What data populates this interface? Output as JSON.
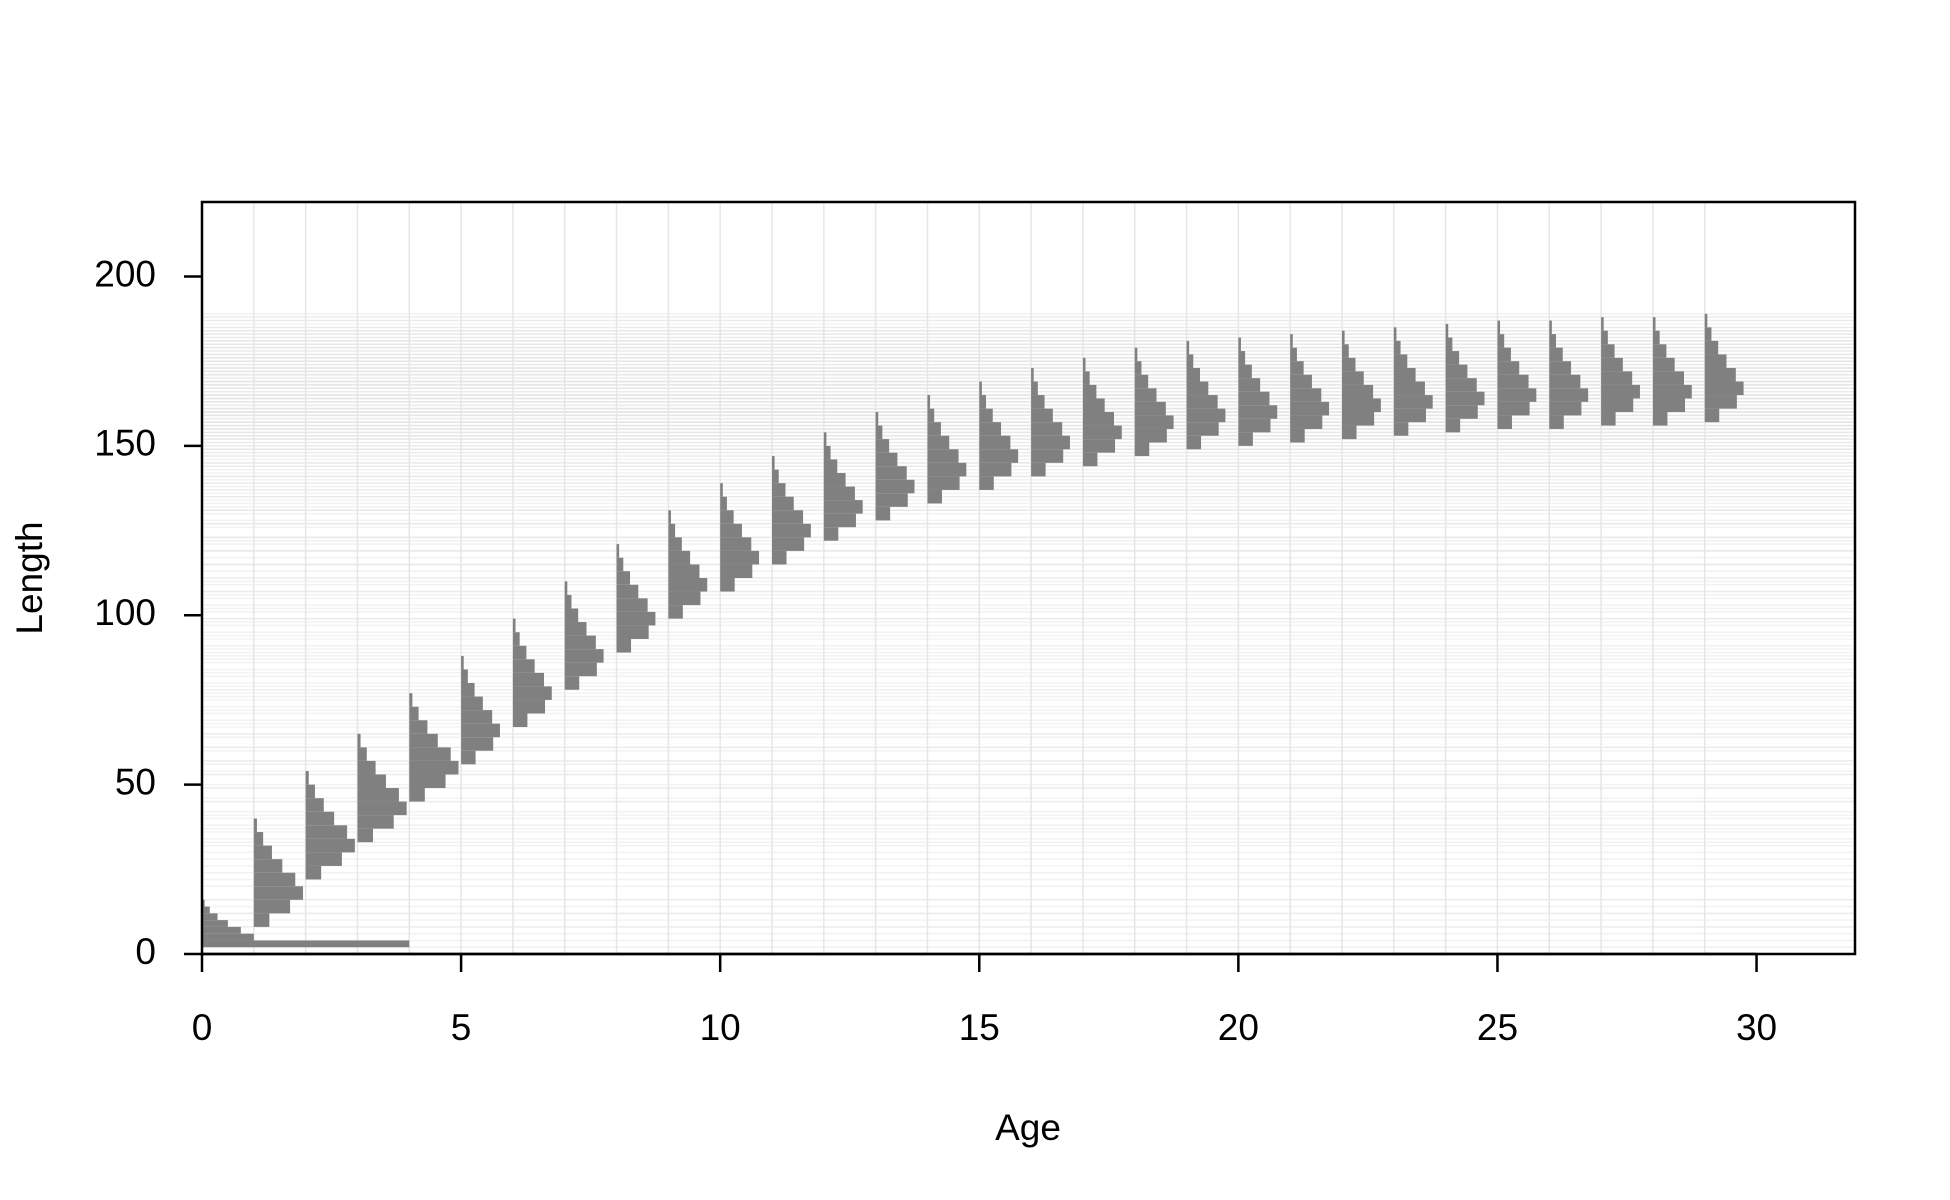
{
  "chart_data": {
    "type": "age-length",
    "xlabel": "Age",
    "ylabel": "Length",
    "color": "#808080",
    "grid": true,
    "xlim": [
      0,
      31.9
    ],
    "ylim": [
      0,
      222
    ],
    "xticks": [
      0,
      5,
      10,
      15,
      20,
      25,
      30
    ],
    "yticks": [
      0,
      50,
      100,
      150,
      200
    ],
    "groups": [
      {
        "age": 0,
        "bins": [
          2,
          4,
          6,
          8,
          10,
          12,
          14,
          16
        ],
        "widths": [
          4,
          1.0,
          0.75,
          0.5,
          0.3,
          0.15,
          0.05
        ]
      },
      {
        "age": 1,
        "bins": [
          8,
          12,
          16,
          20,
          24,
          28,
          32,
          36,
          40
        ],
        "widths": [
          0.3,
          0.7,
          0.95,
          0.8,
          0.55,
          0.35,
          0.18,
          0.06
        ]
      },
      {
        "age": 2,
        "bins": [
          22,
          26,
          30,
          34,
          38,
          42,
          46,
          50,
          54
        ],
        "widths": [
          0.3,
          0.7,
          0.95,
          0.8,
          0.55,
          0.35,
          0.18,
          0.06
        ]
      },
      {
        "age": 3,
        "bins": [
          33,
          37,
          41,
          45,
          49,
          53,
          57,
          61,
          65
        ],
        "widths": [
          0.3,
          0.7,
          0.95,
          0.8,
          0.55,
          0.35,
          0.18,
          0.06
        ]
      },
      {
        "age": 4,
        "bins": [
          45,
          49,
          53,
          57,
          61,
          65,
          69,
          73,
          77
        ],
        "widths": [
          0.3,
          0.7,
          0.95,
          0.8,
          0.55,
          0.35,
          0.18,
          0.06
        ]
      },
      {
        "age": 5,
        "bins": [
          56,
          60,
          64,
          68,
          72,
          76,
          80,
          84,
          88
        ],
        "widths": [
          0.28,
          0.62,
          0.75,
          0.6,
          0.42,
          0.26,
          0.13,
          0.05
        ]
      },
      {
        "age": 6,
        "bins": [
          67,
          71,
          75,
          79,
          83,
          87,
          91,
          95,
          99
        ],
        "widths": [
          0.28,
          0.62,
          0.75,
          0.6,
          0.42,
          0.26,
          0.13,
          0.05
        ]
      },
      {
        "age": 7,
        "bins": [
          78,
          82,
          86,
          90,
          94,
          98,
          102,
          106,
          110
        ],
        "widths": [
          0.28,
          0.62,
          0.75,
          0.6,
          0.42,
          0.26,
          0.13,
          0.05
        ]
      },
      {
        "age": 8,
        "bins": [
          89,
          93,
          97,
          101,
          105,
          109,
          113,
          117,
          121
        ],
        "widths": [
          0.28,
          0.62,
          0.75,
          0.6,
          0.42,
          0.26,
          0.13,
          0.05
        ]
      },
      {
        "age": 9,
        "bins": [
          99,
          103,
          107,
          111,
          115,
          119,
          123,
          127,
          131
        ],
        "widths": [
          0.28,
          0.62,
          0.75,
          0.6,
          0.42,
          0.26,
          0.13,
          0.05
        ]
      },
      {
        "age": 10,
        "bins": [
          107,
          111,
          115,
          119,
          123,
          127,
          131,
          135,
          139
        ],
        "widths": [
          0.28,
          0.62,
          0.75,
          0.6,
          0.42,
          0.26,
          0.13,
          0.05
        ]
      },
      {
        "age": 11,
        "bins": [
          115,
          119,
          123,
          127,
          131,
          135,
          139,
          143,
          147
        ],
        "widths": [
          0.28,
          0.62,
          0.75,
          0.6,
          0.42,
          0.26,
          0.13,
          0.05
        ]
      },
      {
        "age": 12,
        "bins": [
          122,
          126,
          130,
          134,
          138,
          142,
          146,
          150,
          154
        ],
        "widths": [
          0.28,
          0.62,
          0.75,
          0.6,
          0.42,
          0.26,
          0.13,
          0.05
        ]
      },
      {
        "age": 13,
        "bins": [
          128,
          132,
          136,
          140,
          144,
          148,
          152,
          156,
          160
        ],
        "widths": [
          0.28,
          0.62,
          0.75,
          0.6,
          0.42,
          0.26,
          0.13,
          0.05
        ]
      },
      {
        "age": 14,
        "bins": [
          133,
          137,
          141,
          145,
          149,
          153,
          157,
          161,
          165
        ],
        "widths": [
          0.28,
          0.62,
          0.75,
          0.6,
          0.42,
          0.26,
          0.13,
          0.05
        ]
      },
      {
        "age": 15,
        "bins": [
          137,
          141,
          145,
          149,
          153,
          157,
          161,
          165,
          169
        ],
        "widths": [
          0.28,
          0.62,
          0.75,
          0.6,
          0.42,
          0.26,
          0.13,
          0.05
        ]
      },
      {
        "age": 16,
        "bins": [
          141,
          145,
          149,
          153,
          157,
          161,
          165,
          169,
          173
        ],
        "widths": [
          0.28,
          0.62,
          0.75,
          0.6,
          0.42,
          0.26,
          0.13,
          0.05
        ]
      },
      {
        "age": 17,
        "bins": [
          144,
          148,
          152,
          156,
          160,
          164,
          168,
          172,
          176
        ],
        "widths": [
          0.28,
          0.62,
          0.75,
          0.6,
          0.42,
          0.26,
          0.13,
          0.05
        ]
      },
      {
        "age": 18,
        "bins": [
          147,
          151,
          155,
          159,
          163,
          167,
          171,
          175,
          179
        ],
        "widths": [
          0.28,
          0.62,
          0.75,
          0.6,
          0.42,
          0.26,
          0.13,
          0.05
        ]
      },
      {
        "age": 19,
        "bins": [
          149,
          153,
          157,
          161,
          165,
          169,
          173,
          177,
          181
        ],
        "widths": [
          0.28,
          0.62,
          0.75,
          0.6,
          0.42,
          0.26,
          0.13,
          0.05
        ]
      },
      {
        "age": 20,
        "bins": [
          150,
          154,
          158,
          162,
          166,
          170,
          174,
          178,
          182
        ],
        "widths": [
          0.28,
          0.62,
          0.75,
          0.6,
          0.42,
          0.26,
          0.13,
          0.05
        ]
      },
      {
        "age": 21,
        "bins": [
          151,
          155,
          159,
          163,
          167,
          171,
          175,
          179,
          183
        ],
        "widths": [
          0.28,
          0.62,
          0.75,
          0.6,
          0.42,
          0.26,
          0.13,
          0.05
        ]
      },
      {
        "age": 22,
        "bins": [
          152,
          156,
          160,
          164,
          168,
          172,
          176,
          180,
          184
        ],
        "widths": [
          0.28,
          0.62,
          0.75,
          0.6,
          0.42,
          0.26,
          0.13,
          0.05
        ]
      },
      {
        "age": 23,
        "bins": [
          153,
          157,
          161,
          165,
          169,
          173,
          177,
          181,
          185
        ],
        "widths": [
          0.28,
          0.62,
          0.75,
          0.6,
          0.42,
          0.26,
          0.13,
          0.05
        ]
      },
      {
        "age": 24,
        "bins": [
          154,
          158,
          162,
          166,
          170,
          174,
          178,
          182,
          186
        ],
        "widths": [
          0.28,
          0.62,
          0.75,
          0.6,
          0.42,
          0.26,
          0.13,
          0.05
        ]
      },
      {
        "age": 25,
        "bins": [
          155,
          159,
          163,
          167,
          171,
          175,
          179,
          183,
          187
        ],
        "widths": [
          0.28,
          0.62,
          0.75,
          0.6,
          0.42,
          0.26,
          0.13,
          0.05
        ]
      },
      {
        "age": 26,
        "bins": [
          155,
          159,
          163,
          167,
          171,
          175,
          179,
          183,
          187
        ],
        "widths": [
          0.28,
          0.62,
          0.75,
          0.6,
          0.42,
          0.26,
          0.13,
          0.05
        ]
      },
      {
        "age": 27,
        "bins": [
          156,
          160,
          164,
          168,
          172,
          176,
          180,
          184,
          188
        ],
        "widths": [
          0.28,
          0.62,
          0.75,
          0.6,
          0.42,
          0.26,
          0.13,
          0.05
        ]
      },
      {
        "age": 28,
        "bins": [
          156,
          160,
          164,
          168,
          172,
          176,
          180,
          184,
          188
        ],
        "widths": [
          0.28,
          0.62,
          0.75,
          0.6,
          0.42,
          0.26,
          0.13,
          0.05
        ]
      },
      {
        "age": 29,
        "bins": [
          157,
          161,
          165,
          169,
          173,
          177,
          181,
          185,
          189
        ],
        "widths": [
          0.28,
          0.62,
          0.75,
          0.6,
          0.42,
          0.26,
          0.13,
          0.05
        ]
      }
    ]
  }
}
